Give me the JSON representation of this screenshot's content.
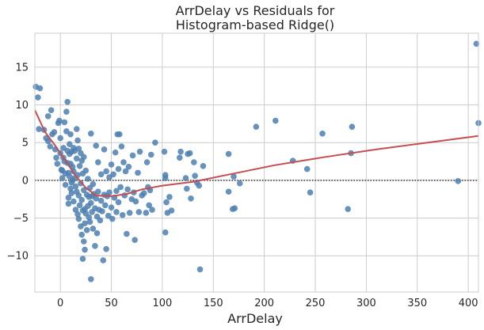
{
  "chart_data": {
    "type": "scatter",
    "title_line1": "ArrDelay vs Residuals for",
    "title_line2": "Histogram-based Ridge()",
    "xlabel": "ArrDelay",
    "ylabel": "",
    "xlim": [
      -25,
      410
    ],
    "ylim": [
      -14.8,
      19.5
    ],
    "xticks": [
      0,
      50,
      100,
      150,
      200,
      250,
      300,
      350,
      400
    ],
    "yticks": [
      -10,
      -5,
      0,
      5,
      10,
      15
    ],
    "grid": true,
    "colors": {
      "points": "#4c7fb0",
      "lowess": "#c44e52",
      "zero_line": "#333333",
      "grid": "#cccccc",
      "axes": "#cccccc"
    },
    "points": [
      [
        -24,
        12.4
      ],
      [
        -20,
        12.2
      ],
      [
        -22,
        11.0
      ],
      [
        -21,
        6.8
      ],
      [
        -16,
        6.7
      ],
      [
        -14,
        5.6
      ],
      [
        -12,
        8.5
      ],
      [
        -12,
        5.2
      ],
      [
        -10,
        4.5
      ],
      [
        -9,
        9.3
      ],
      [
        -8,
        6.1
      ],
      [
        -6,
        6.4
      ],
      [
        -5,
        4.1
      ],
      [
        -4,
        3.0
      ],
      [
        -3,
        2.2
      ],
      [
        -2,
        7.6
      ],
      [
        -1,
        7.9
      ],
      [
        0,
        5.6
      ],
      [
        0,
        3.6
      ],
      [
        1,
        1.4
      ],
      [
        2,
        1.3
      ],
      [
        2,
        0.3
      ],
      [
        3,
        4.3
      ],
      [
        3,
        3.0
      ],
      [
        4,
        2.5
      ],
      [
        4,
        7.7
      ],
      [
        5,
        0.9
      ],
      [
        5,
        -0.6
      ],
      [
        6,
        9.1
      ],
      [
        6,
        6.5
      ],
      [
        7,
        10.4
      ],
      [
        7,
        3.9
      ],
      [
        7,
        2.3
      ],
      [
        8,
        1.0
      ],
      [
        8,
        -2.3
      ],
      [
        8,
        -3.1
      ],
      [
        9,
        4.8
      ],
      [
        9,
        3.5
      ],
      [
        9,
        0.5
      ],
      [
        10,
        6.1
      ],
      [
        10,
        2.2
      ],
      [
        10,
        -1.1
      ],
      [
        11,
        3.8
      ],
      [
        11,
        -0.3
      ],
      [
        11,
        -1.7
      ],
      [
        12,
        1.8
      ],
      [
        12,
        0.0
      ],
      [
        13,
        4.3
      ],
      [
        13,
        1.2
      ],
      [
        13,
        -2.8
      ],
      [
        14,
        3.9
      ],
      [
        14,
        0.3
      ],
      [
        15,
        -0.8
      ],
      [
        15,
        -3.9
      ],
      [
        16,
        6.8
      ],
      [
        16,
        2.9
      ],
      [
        16,
        -1.5
      ],
      [
        17,
        5.3
      ],
      [
        17,
        0.7
      ],
      [
        17,
        -4.5
      ],
      [
        18,
        4.2
      ],
      [
        18,
        -2.0
      ],
      [
        18,
        -5.1
      ],
      [
        19,
        1.9
      ],
      [
        19,
        -3.3
      ],
      [
        20,
        3.6
      ],
      [
        20,
        -0.4
      ],
      [
        20,
        -6.1
      ],
      [
        21,
        2.6
      ],
      [
        21,
        -2.6
      ],
      [
        21,
        -7.2
      ],
      [
        22,
        0.9
      ],
      [
        22,
        -4.0
      ],
      [
        22,
        -10.4
      ],
      [
        23,
        3.1
      ],
      [
        23,
        -1.3
      ],
      [
        23,
        -8.1
      ],
      [
        24,
        -3.8
      ],
      [
        24,
        -5.7
      ],
      [
        24,
        -9.2
      ],
      [
        25,
        1.3
      ],
      [
        25,
        -4.4
      ],
      [
        26,
        -1.9
      ],
      [
        26,
        -6.6
      ],
      [
        27,
        0.2
      ],
      [
        27,
        -3.4
      ],
      [
        28,
        -2.2
      ],
      [
        28,
        -4.9
      ],
      [
        29,
        -1.0
      ],
      [
        29,
        -5.5
      ],
      [
        30,
        6.2
      ],
      [
        30,
        -3.0
      ],
      [
        30,
        -13.1
      ],
      [
        31,
        -2.1
      ],
      [
        31,
        -4.2
      ],
      [
        32,
        -0.5
      ],
      [
        32,
        -6.4
      ],
      [
        33,
        -1.8
      ],
      [
        34,
        -3.7
      ],
      [
        34,
        -8.7
      ],
      [
        35,
        4.6
      ],
      [
        35,
        -2.4
      ],
      [
        36,
        -4.8
      ],
      [
        36,
        -7.0
      ],
      [
        37,
        2.4
      ],
      [
        37,
        -1.5
      ],
      [
        38,
        -3.9
      ],
      [
        39,
        -5.3
      ],
      [
        40,
        0.8
      ],
      [
        40,
        -2.7
      ],
      [
        41,
        -4.1
      ],
      [
        42,
        -10.6
      ],
      [
        43,
        4.1
      ],
      [
        43,
        -1.9
      ],
      [
        44,
        -3.3
      ],
      [
        45,
        1.2
      ],
      [
        45,
        -9.1
      ],
      [
        46,
        -2.1
      ],
      [
        47,
        -4.7
      ],
      [
        48,
        0.4
      ],
      [
        48,
        -1.6
      ],
      [
        50,
        2.1
      ],
      [
        50,
        -3.6
      ],
      [
        51,
        -5.1
      ],
      [
        52,
        0.8
      ],
      [
        53,
        -2.3
      ],
      [
        54,
        3.7
      ],
      [
        55,
        -1.4
      ],
      [
        55,
        -4.2
      ],
      [
        56,
        6.1
      ],
      [
        57,
        1.5
      ],
      [
        57,
        -2.9
      ],
      [
        58,
        6.1
      ],
      [
        59,
        -0.9
      ],
      [
        60,
        4.5
      ],
      [
        61,
        -4.6
      ],
      [
        62,
        2.4
      ],
      [
        63,
        -2.0
      ],
      [
        64,
        1.2
      ],
      [
        65,
        -7.1
      ],
      [
        66,
        -1.2
      ],
      [
        67,
        1.8
      ],
      [
        68,
        -4.3
      ],
      [
        70,
        -2.5
      ],
      [
        71,
        3.3
      ],
      [
        72,
        -1.6
      ],
      [
        73,
        -7.9
      ],
      [
        74,
        -2.8
      ],
      [
        76,
        1.0
      ],
      [
        77,
        -4.2
      ],
      [
        78,
        3.8
      ],
      [
        80,
        -2.0
      ],
      [
        82,
        -1.7
      ],
      [
        84,
        -4.3
      ],
      [
        85,
        2.4
      ],
      [
        86,
        -0.9
      ],
      [
        87,
        -3.3
      ],
      [
        88,
        -1.3
      ],
      [
        89,
        3.4
      ],
      [
        90,
        -3.9
      ],
      [
        93,
        5.0
      ],
      [
        102,
        3.8
      ],
      [
        103,
        0.3
      ],
      [
        103,
        0.7
      ],
      [
        103,
        -6.9
      ],
      [
        104,
        -2.9
      ],
      [
        105,
        -4.3
      ],
      [
        107,
        -2.2
      ],
      [
        109,
        -4.0
      ],
      [
        117,
        3.0
      ],
      [
        118,
        3.8
      ],
      [
        123,
        0.3
      ],
      [
        124,
        -1.1
      ],
      [
        125,
        3.5
      ],
      [
        127,
        3.6
      ],
      [
        128,
        -2.4
      ],
      [
        131,
        2.4
      ],
      [
        132,
        0.6
      ],
      [
        134,
        -0.3
      ],
      [
        136,
        -0.7
      ],
      [
        137,
        -11.8
      ],
      [
        140,
        1.9
      ],
      [
        165,
        3.5
      ],
      [
        165,
        -1.5
      ],
      [
        169,
        -3.8
      ],
      [
        170,
        0.5
      ],
      [
        171,
        -3.7
      ],
      [
        176,
        -0.4
      ],
      [
        192,
        7.1
      ],
      [
        211,
        7.9
      ],
      [
        228,
        2.6
      ],
      [
        242,
        1.5
      ],
      [
        245,
        -1.6
      ],
      [
        257,
        6.2
      ],
      [
        282,
        -3.8
      ],
      [
        285,
        3.6
      ],
      [
        286,
        7.1
      ],
      [
        390,
        -0.1
      ],
      [
        408,
        18.1
      ],
      [
        410,
        7.6
      ]
    ],
    "lowess": [
      [
        -25,
        9.3
      ],
      [
        -15,
        6.4
      ],
      [
        -5,
        4.6
      ],
      [
        5,
        2.6
      ],
      [
        15,
        0.6
      ],
      [
        25,
        -1.0
      ],
      [
        35,
        -2.0
      ],
      [
        50,
        -2.1
      ],
      [
        65,
        -1.8
      ],
      [
        80,
        -1.2
      ],
      [
        100,
        -0.7
      ],
      [
        130,
        -0.2
      ],
      [
        170,
        0.9
      ],
      [
        210,
        2.0
      ],
      [
        260,
        3.1
      ],
      [
        310,
        4.1
      ],
      [
        360,
        5.0
      ],
      [
        410,
        5.9
      ]
    ]
  }
}
